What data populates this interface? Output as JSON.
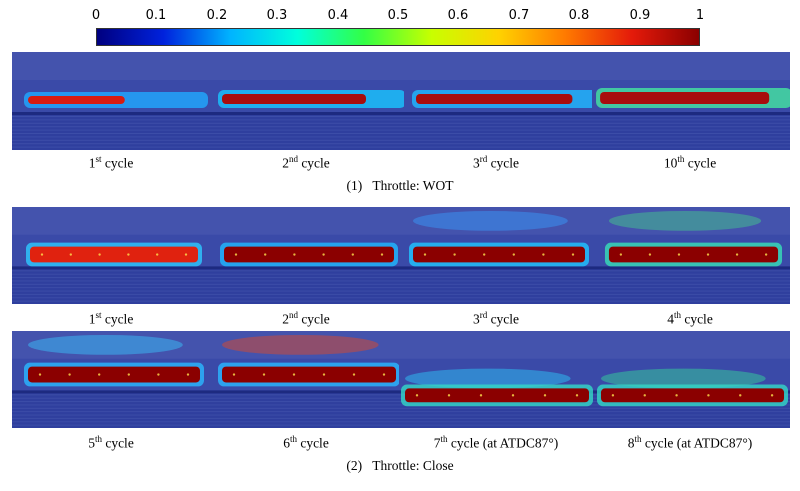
{
  "colorbar": {
    "ticks": [
      "0",
      "0.1",
      "0.2",
      "0.3",
      "0.4",
      "0.5",
      "0.6",
      "0.7",
      "0.8",
      "0.9",
      "1"
    ],
    "colors": [
      "#000080",
      "#0022dd",
      "#00b4ff",
      "#00ffdc",
      "#33ff44",
      "#c8ff00",
      "#ffd200",
      "#ff7a00",
      "#e41a0a",
      "#8b0000"
    ]
  },
  "wot": {
    "caption_num": "(1)",
    "caption_text": "Throttle: WOT",
    "panels": [
      {
        "cap_num": "1",
        "cap_sup": "st",
        "cap_text": " cycle"
      },
      {
        "cap_num": "2",
        "cap_sup": "nd",
        "cap_text": " cycle"
      },
      {
        "cap_num": "3",
        "cap_sup": "rd",
        "cap_text": " cycle"
      },
      {
        "cap_num": "10",
        "cap_sup": "th",
        "cap_text": " cycle"
      }
    ]
  },
  "close": {
    "caption_num": "(2)",
    "caption_text": "Throttle: Close",
    "panels": [
      {
        "cap_num": "1",
        "cap_sup": "st",
        "cap_text": " cycle"
      },
      {
        "cap_num": "2",
        "cap_sup": "nd",
        "cap_text": " cycle"
      },
      {
        "cap_num": "3",
        "cap_sup": "rd",
        "cap_text": " cycle"
      },
      {
        "cap_num": "4",
        "cap_sup": "th",
        "cap_text": " cycle"
      },
      {
        "cap_num": "5",
        "cap_sup": "th",
        "cap_text": " cycle"
      },
      {
        "cap_num": "6",
        "cap_sup": "th",
        "cap_text": " cycle"
      },
      {
        "cap_num": "7",
        "cap_sup": "th",
        "cap_text": " cycle (at ATDC87°)"
      },
      {
        "cap_num": "8",
        "cap_sup": "th",
        "cap_text": " cycle (at ATDC87°)"
      }
    ]
  }
}
